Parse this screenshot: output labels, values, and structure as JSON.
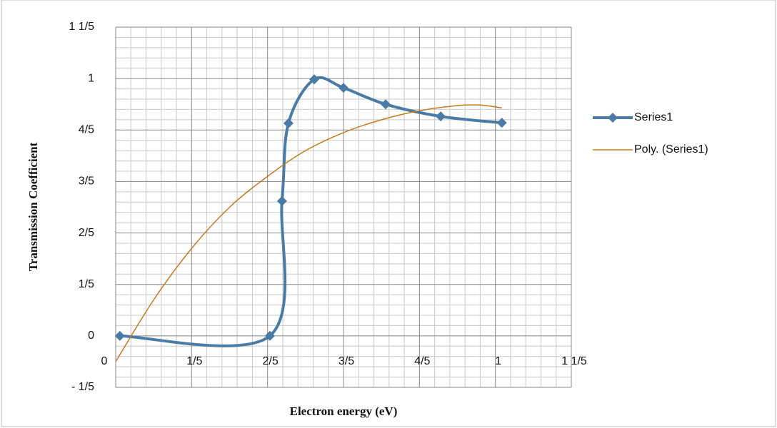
{
  "chart_data": {
    "type": "scatter",
    "x_label": "Electron energy (eV)",
    "y_label": "Transmission Coefficient",
    "xlim": [
      0,
      1.2
    ],
    "ylim": [
      -0.2,
      1.2
    ],
    "xticks": [
      0,
      {
        "value": 0.2,
        "label": "1/5"
      },
      {
        "value": 0.4,
        "label": "2/5"
      },
      {
        "value": 0.6,
        "label": "3/5"
      },
      {
        "value": 0.8,
        "label": "4/5"
      },
      1,
      {
        "value": 1.2,
        "label": "1 1/5"
      }
    ],
    "yticks": [
      {
        "value": -0.2,
        "label": "- 1/5"
      },
      0,
      {
        "value": 0.2,
        "label": "1/5"
      },
      {
        "value": 0.4,
        "label": "2/5"
      },
      {
        "value": 0.6,
        "label": "3/5"
      },
      {
        "value": 0.8,
        "label": "4/5"
      },
      1,
      {
        "value": 1.2,
        "label": "1 1/5"
      }
    ],
    "grid": true,
    "legend": "right",
    "series": [
      {
        "name": "Series1",
        "color": "#4a7ba6",
        "marker": "diamond",
        "x": [
          0.011,
          0.406,
          0.438,
          0.455,
          0.523,
          0.6,
          0.711,
          0.856,
          1.017
        ],
        "values": [
          0,
          0,
          0.524,
          0.826,
          0.997,
          0.964,
          0.9,
          0.853,
          0.828
        ]
      },
      {
        "name": "Poly. (Series1)",
        "color": "#c8781e",
        "marker": "none",
        "x": [
          0.0,
          0.1,
          0.2,
          0.3,
          0.4,
          0.5,
          0.6,
          0.7,
          0.8,
          0.9,
          0.96,
          1.017
        ],
        "values": [
          -0.1,
          0.14,
          0.34,
          0.5,
          0.62,
          0.72,
          0.79,
          0.84,
          0.875,
          0.895,
          0.897,
          0.886
        ]
      }
    ]
  }
}
